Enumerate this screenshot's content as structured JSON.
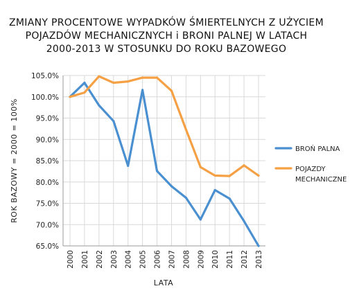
{
  "chart_data": {
    "type": "line",
    "title_lines": [
      "ZMIANY PROCENTOWE WYPADKÓW ŚMIERTELNYCH Z UŻYCIEM",
      "POJAZDÓW MECHANICZNYCH i BRONI PALNEJ W LATACH",
      "2000-2013 W STOSUNKU DO ROKU BAZOWEGO"
    ],
    "xlabel": "LATA",
    "ylabel": "ROK BAZOWY = 2000 = 100%",
    "categories": [
      "2000",
      "2001",
      "2002",
      "2003",
      "2004",
      "2005",
      "2006",
      "2007",
      "2008",
      "2009",
      "2010",
      "2011",
      "2012",
      "2013"
    ],
    "yticks": [
      "65.0%",
      "70.0%",
      "75.0%",
      "80.0%",
      "85.0%",
      "90.0%",
      "95.0%",
      "100.0%",
      "105.0%"
    ],
    "ylim": [
      65,
      105
    ],
    "grid": true,
    "legend_position": "right",
    "series": [
      {
        "name": "BROŃ PALNA",
        "color": "#4a90d0",
        "values": [
          100.0,
          103.3,
          98.0,
          94.3,
          83.8,
          101.6,
          82.6,
          79.0,
          76.3,
          71.2,
          78.1,
          76.1,
          70.8,
          65.0
        ]
      },
      {
        "name_lines": [
          "POJAZDY",
          "MECHANICZNE"
        ],
        "color": "#f5a044",
        "values": [
          100.0,
          101.0,
          104.8,
          103.3,
          103.6,
          104.5,
          104.5,
          101.4,
          92.3,
          83.5,
          81.5,
          81.4,
          83.9,
          81.5
        ]
      }
    ]
  }
}
